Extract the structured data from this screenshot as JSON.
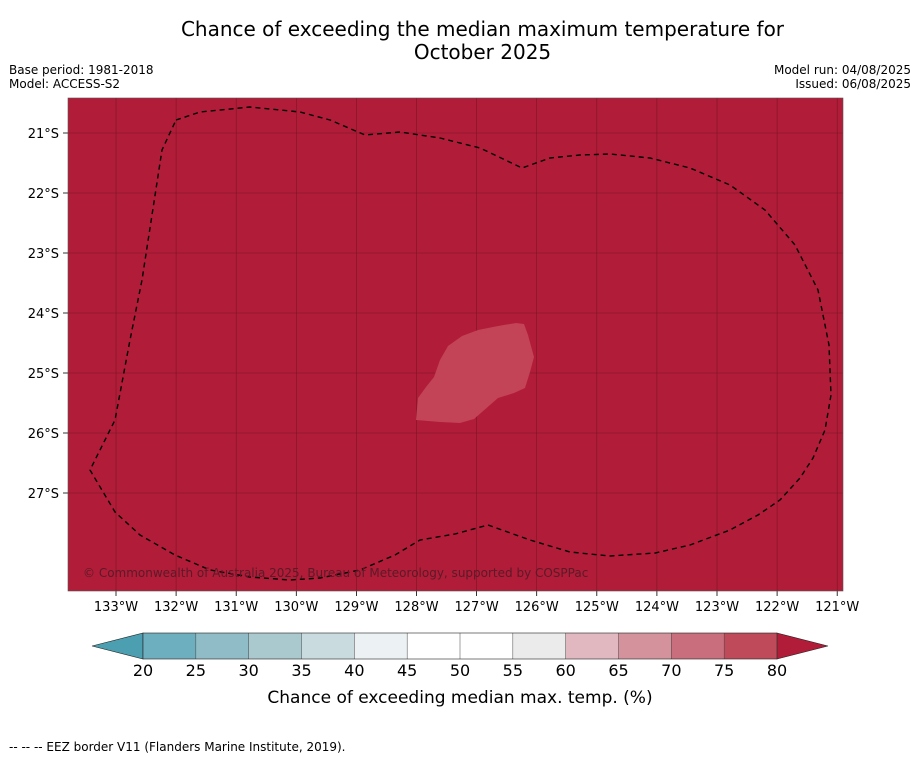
{
  "title": "Chance of exceeding the median maximum temperature for",
  "subtitle": "October 2025",
  "base_period": "Base period: 1981-2018",
  "model": "Model: ACCESS-S2",
  "model_run": "Model run: 04/08/2025",
  "issued": "Issued: 06/08/2025",
  "copyright": "© Commonwealth of Australia 2025, Bureau of Meteorology, supported by COSPPac",
  "footnote": "--  --  -- EEZ border V11 (Flanders Marine Institute, 2019).",
  "map": {
    "lon_ticks": [
      "133°W",
      "132°W",
      "131°W",
      "130°W",
      "129°W",
      "128°W",
      "127°W",
      "126°W",
      "125°W",
      "124°W",
      "123°W",
      "122°W",
      "121°W"
    ],
    "lat_ticks": [
      "21°S",
      "22°S",
      "23°S",
      "24°S",
      "25°S",
      "26°S",
      "27°S"
    ],
    "fill_color": "#b11c38",
    "patch_color": "#c24456"
  },
  "colorbar": {
    "title": "Chance of exceeding median max. temp. (%)",
    "ticks": [
      "20",
      "25",
      "30",
      "35",
      "40",
      "45",
      "50",
      "55",
      "60",
      "65",
      "70",
      "75",
      "80"
    ],
    "colors": [
      "#6eafbf",
      "#8fbcc7",
      "#aac9cf",
      "#c9dbdf",
      "#ecf2f3",
      "#ffffff",
      "#ffffff",
      "#ebebeb",
      "#e1b8bf",
      "#d4929d",
      "#c96e7c",
      "#bf4a5a"
    ],
    "under_color": "#4b9fb0",
    "over_color": "#b11c38"
  }
}
